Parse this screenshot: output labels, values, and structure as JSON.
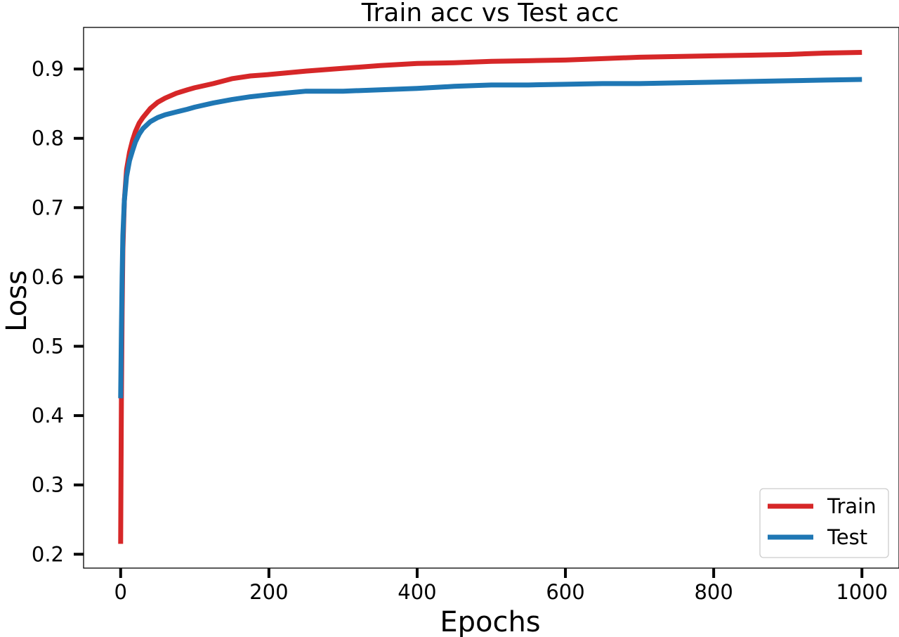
{
  "chart_data": {
    "type": "line",
    "title": "Train acc vs Test acc",
    "xlabel": "Epochs",
    "ylabel": "Loss",
    "xlim": [
      -50,
      1050
    ],
    "ylim": [
      0.18,
      0.96
    ],
    "xticks": [
      0,
      200,
      400,
      600,
      800,
      1000
    ],
    "yticks": [
      0.2,
      0.3,
      0.4,
      0.5,
      0.6,
      0.7,
      0.8,
      0.9
    ],
    "xtick_labels": [
      "0",
      "200",
      "400",
      "600",
      "800",
      "1000"
    ],
    "ytick_labels": [
      "0.2",
      "0.3",
      "0.4",
      "0.5",
      "0.6",
      "0.7",
      "0.8",
      "0.9"
    ],
    "grid": false,
    "legend_position": "bottom-right",
    "series": [
      {
        "name": "Train",
        "color": "#d62728",
        "x": [
          0,
          1,
          2,
          3,
          5,
          8,
          12,
          16,
          20,
          25,
          30,
          40,
          50,
          60,
          75,
          90,
          100,
          125,
          150,
          175,
          200,
          250,
          300,
          350,
          400,
          450,
          500,
          550,
          600,
          650,
          700,
          750,
          800,
          850,
          900,
          950,
          1000
        ],
        "y": [
          0.215,
          0.42,
          0.55,
          0.64,
          0.71,
          0.755,
          0.78,
          0.797,
          0.81,
          0.822,
          0.83,
          0.843,
          0.852,
          0.858,
          0.865,
          0.87,
          0.873,
          0.879,
          0.886,
          0.89,
          0.892,
          0.897,
          0.901,
          0.905,
          0.908,
          0.909,
          0.911,
          0.912,
          0.913,
          0.915,
          0.917,
          0.918,
          0.919,
          0.92,
          0.921,
          0.923,
          0.924
        ]
      },
      {
        "name": "Test",
        "color": "#1f77b4",
        "x": [
          0,
          1,
          2,
          3,
          5,
          8,
          12,
          16,
          20,
          25,
          30,
          40,
          50,
          60,
          75,
          90,
          100,
          125,
          150,
          175,
          200,
          250,
          300,
          350,
          400,
          450,
          500,
          550,
          600,
          650,
          700,
          750,
          800,
          850,
          900,
          950,
          1000
        ],
        "y": [
          0.425,
          0.52,
          0.6,
          0.66,
          0.71,
          0.745,
          0.768,
          0.782,
          0.795,
          0.806,
          0.814,
          0.824,
          0.83,
          0.834,
          0.838,
          0.842,
          0.845,
          0.851,
          0.856,
          0.86,
          0.863,
          0.868,
          0.868,
          0.87,
          0.872,
          0.875,
          0.877,
          0.877,
          0.878,
          0.879,
          0.879,
          0.88,
          0.881,
          0.882,
          0.883,
          0.884,
          0.885
        ]
      }
    ]
  }
}
